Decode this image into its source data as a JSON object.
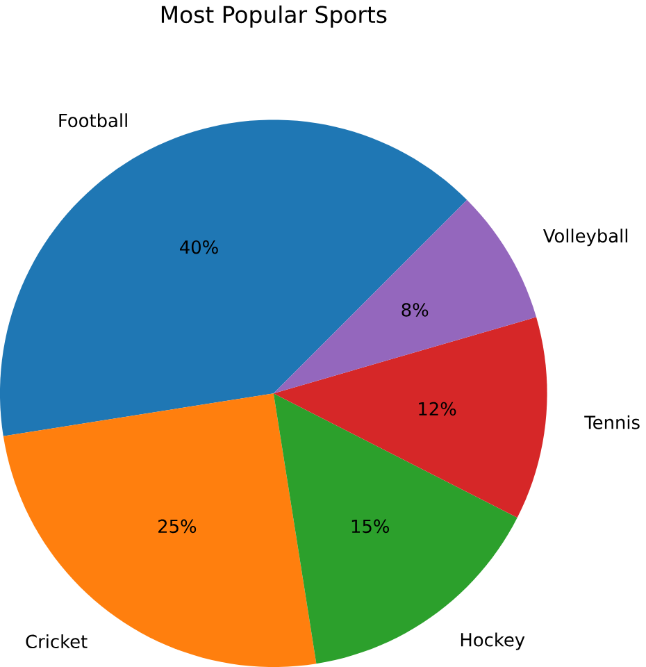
{
  "chart_data": {
    "type": "pie",
    "title": "Most Popular Sports",
    "categories": [
      "Football",
      "Cricket",
      "Hockey",
      "Tennis",
      "Volleyball"
    ],
    "values": [
      40,
      25,
      15,
      12,
      8
    ],
    "value_labels": [
      "40%",
      "25%",
      "15%",
      "12%",
      "8%"
    ],
    "colors": [
      "#1f77b4",
      "#ff7f0e",
      "#2ca02c",
      "#d62728",
      "#9467bd"
    ]
  }
}
